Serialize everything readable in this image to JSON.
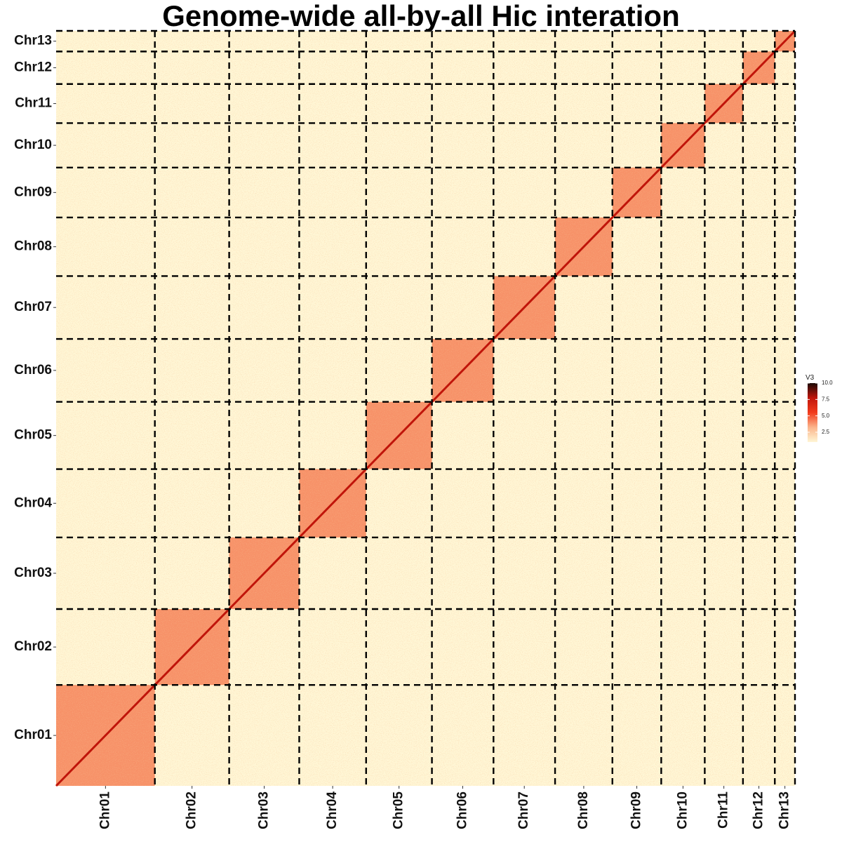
{
  "chart_data": {
    "type": "heatmap",
    "title": "Genome-wide all-by-all Hic interation",
    "xlabel": "",
    "ylabel": "",
    "chromosomes": [
      {
        "name": "Chr01",
        "size": 9.3
      },
      {
        "name": "Chr02",
        "size": 7.0
      },
      {
        "name": "Chr03",
        "size": 6.6
      },
      {
        "name": "Chr04",
        "size": 6.3
      },
      {
        "name": "Chr05",
        "size": 6.2
      },
      {
        "name": "Chr06",
        "size": 5.8
      },
      {
        "name": "Chr07",
        "size": 5.8
      },
      {
        "name": "Chr08",
        "size": 5.4
      },
      {
        "name": "Chr09",
        "size": 4.6
      },
      {
        "name": "Chr10",
        "size": 4.1
      },
      {
        "name": "Chr11",
        "size": 3.6
      },
      {
        "name": "Chr12",
        "size": 3.0
      },
      {
        "name": "Chr13",
        "size": 1.9
      }
    ],
    "legend": {
      "title": "V3",
      "position": "right",
      "ticks": [
        2.5,
        5.0,
        7.5,
        10.0
      ],
      "tick_labels": [
        "2.5",
        "5.0",
        "7.5",
        "10.0"
      ],
      "range": [
        1,
        10
      ]
    },
    "colors": {
      "low": "#fff6d5",
      "mid_low": "#fbb58c",
      "mid": "#f23b1c",
      "mid_high": "#c0150a",
      "high": "#1a0a05",
      "boundary_line": "#000000"
    },
    "grid": false,
    "boundary_lines": "dashed"
  }
}
